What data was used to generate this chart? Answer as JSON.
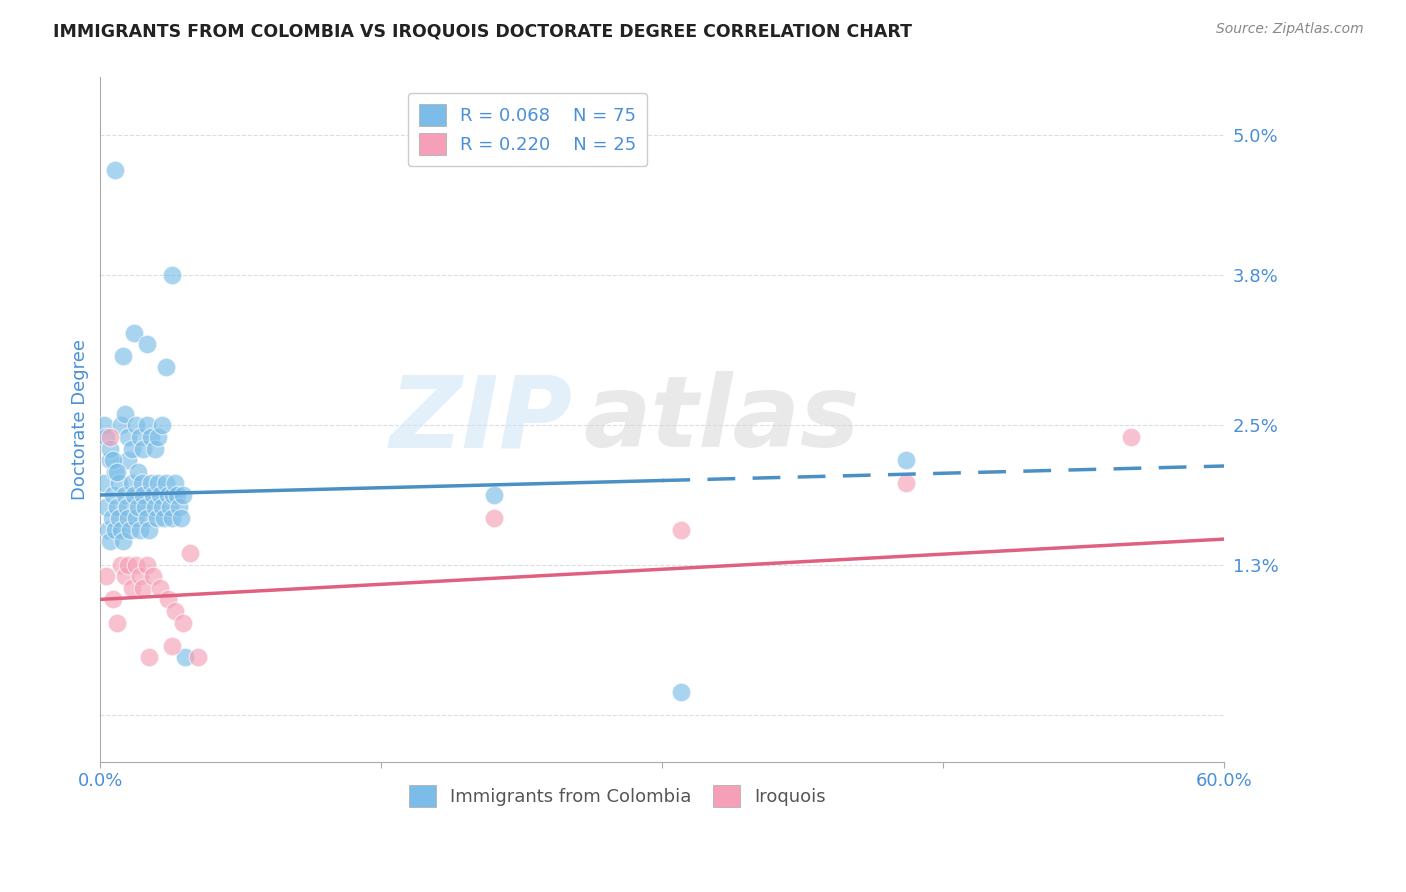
{
  "title": "IMMIGRANTS FROM COLOMBIA VS IROQUOIS DOCTORATE DEGREE CORRELATION CHART",
  "source": "Source: ZipAtlas.com",
  "ylabel": "Doctorate Degree",
  "yticks": [
    0.0,
    0.013,
    0.025,
    0.038,
    0.05
  ],
  "ytick_labels": [
    "",
    "1.3%",
    "2.5%",
    "3.8%",
    "5.0%"
  ],
  "xlim": [
    0.0,
    0.6
  ],
  "ylim": [
    -0.004,
    0.055
  ],
  "legend_r1": "R = 0.068",
  "legend_n1": "N = 75",
  "legend_r2": "R = 0.220",
  "legend_n2": "N = 25",
  "color_blue": "#7bbde8",
  "color_pink": "#f5a0b8",
  "color_blue_line": "#4a90c4",
  "color_pink_line": "#e06080",
  "color_blue_text": "#4a90d9",
  "color_axis_label": "#4a90d9",
  "blue_scatter_x": [
    0.002,
    0.003,
    0.004,
    0.005,
    0.005,
    0.006,
    0.007,
    0.008,
    0.008,
    0.009,
    0.01,
    0.01,
    0.011,
    0.012,
    0.013,
    0.014,
    0.015,
    0.015,
    0.016,
    0.017,
    0.018,
    0.019,
    0.02,
    0.02,
    0.021,
    0.022,
    0.023,
    0.024,
    0.025,
    0.026,
    0.027,
    0.028,
    0.029,
    0.03,
    0.031,
    0.032,
    0.033,
    0.034,
    0.035,
    0.036,
    0.037,
    0.038,
    0.039,
    0.04,
    0.041,
    0.042,
    0.043,
    0.044,
    0.002,
    0.003,
    0.005,
    0.007,
    0.009,
    0.011,
    0.013,
    0.015,
    0.017,
    0.019,
    0.021,
    0.023,
    0.025,
    0.027,
    0.029,
    0.031,
    0.033,
    0.21,
    0.31,
    0.43,
    0.038,
    0.008,
    0.012,
    0.018,
    0.025,
    0.035,
    0.045
  ],
  "blue_scatter_y": [
    0.02,
    0.018,
    0.016,
    0.022,
    0.015,
    0.017,
    0.019,
    0.016,
    0.021,
    0.018,
    0.017,
    0.02,
    0.016,
    0.015,
    0.019,
    0.018,
    0.017,
    0.022,
    0.016,
    0.02,
    0.019,
    0.017,
    0.021,
    0.018,
    0.016,
    0.02,
    0.019,
    0.018,
    0.017,
    0.016,
    0.02,
    0.019,
    0.018,
    0.017,
    0.02,
    0.019,
    0.018,
    0.017,
    0.02,
    0.019,
    0.018,
    0.017,
    0.019,
    0.02,
    0.019,
    0.018,
    0.017,
    0.019,
    0.025,
    0.024,
    0.023,
    0.022,
    0.021,
    0.025,
    0.026,
    0.024,
    0.023,
    0.025,
    0.024,
    0.023,
    0.025,
    0.024,
    0.023,
    0.024,
    0.025,
    0.019,
    0.002,
    0.022,
    0.038,
    0.047,
    0.031,
    0.033,
    0.032,
    0.03,
    0.005
  ],
  "pink_scatter_x": [
    0.003,
    0.005,
    0.007,
    0.009,
    0.011,
    0.013,
    0.015,
    0.017,
    0.019,
    0.021,
    0.023,
    0.025,
    0.028,
    0.032,
    0.036,
    0.04,
    0.044,
    0.048,
    0.052,
    0.026,
    0.31,
    0.43,
    0.55,
    0.21,
    0.038
  ],
  "pink_scatter_y": [
    0.012,
    0.024,
    0.01,
    0.008,
    0.013,
    0.012,
    0.013,
    0.011,
    0.013,
    0.012,
    0.011,
    0.013,
    0.012,
    0.011,
    0.01,
    0.009,
    0.008,
    0.014,
    0.005,
    0.005,
    0.016,
    0.02,
    0.024,
    0.017,
    0.006
  ],
  "blue_line_x0": 0.0,
  "blue_line_x1": 0.6,
  "blue_line_y0": 0.019,
  "blue_line_y1": 0.0215,
  "pink_line_x0": 0.0,
  "pink_line_x1": 0.6,
  "pink_line_y0": 0.01,
  "pink_line_y1": 0.0152,
  "grid_color": "#dddddd",
  "background_color": "#ffffff"
}
